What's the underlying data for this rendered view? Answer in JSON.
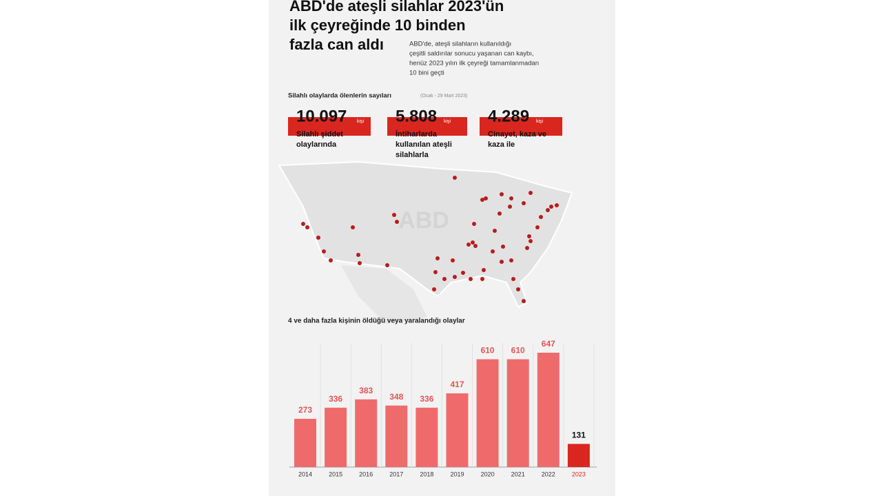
{
  "header": {
    "title_lines": [
      "ABD'de ateşli silahlar 2023'ün",
      "ilk çeyreğinde 10 binden",
      "fazla can aldı"
    ],
    "subtitle_lines": [
      "ABD'de, ateşli silahların kullanıldığı",
      "çeşitli saldırılar sonucu yaşanan can kaybı,",
      "henüz 2023 yılın ilk çeyreği tamamlanmadan",
      "10 bini geçti"
    ]
  },
  "stats": {
    "title": "Silahlı olaylarda ölenlerin sayıları",
    "period": "(Ocak - 29 Mart 2023)",
    "items": [
      {
        "value": "10.097",
        "unit": "kişi",
        "label_lines": [
          "Silahlı şiddet",
          "olaylarında"
        ]
      },
      {
        "value": "5.808",
        "unit": "kişi",
        "label_lines": [
          "İntiharlarda",
          "kullanılan ateşli",
          "silahlarla"
        ]
      },
      {
        "value": "4.289",
        "unit": "kişi",
        "label_lines": [
          "Cinayet, kaza ve",
          "kaza ile"
        ]
      }
    ]
  },
  "map_label": "ABD",
  "chart_data": {
    "type": "bar",
    "title": "4 ve daha fazla kişinin öldüğü veya yaralandığı olaylar",
    "categories": [
      "2014",
      "2015",
      "2016",
      "2017",
      "2018",
      "2019",
      "2020",
      "2021",
      "2022",
      "2023"
    ],
    "values": [
      273,
      336,
      383,
      348,
      336,
      417,
      610,
      610,
      647,
      131
    ],
    "colors": [
      "#ef6b6b",
      "#ef6b6b",
      "#ef6b6b",
      "#ef6b6b",
      "#ef6b6b",
      "#ef6b6b",
      "#ef6b6b",
      "#ef6b6b",
      "#ef6b6b",
      "#d9261f"
    ]
  }
}
